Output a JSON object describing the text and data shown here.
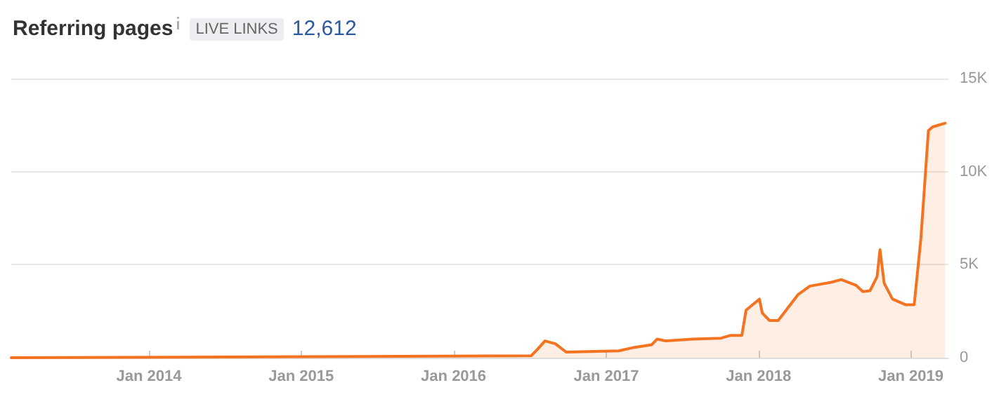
{
  "chart_data": {
    "type": "area",
    "title": "Referring pages",
    "subtitle": "LIVE LINKS",
    "annotations": [
      "12,612"
    ],
    "x": [
      "2013-02-05",
      "2016-07-05",
      "2016-07-20",
      "2016-08-07",
      "2016-09-01",
      "2016-09-27",
      "2017-01-31",
      "2017-03-08",
      "2017-04-20",
      "2017-05-03",
      "2017-05-24",
      "2017-07-27",
      "2017-10-03",
      "2017-10-26",
      "2017-11-22",
      "2017-12-02",
      "2018-01-03",
      "2018-01-10",
      "2018-01-27",
      "2018-02-17",
      "2018-04-06",
      "2018-05-04",
      "2018-06-24",
      "2018-07-18",
      "2018-08-22",
      "2018-09-08",
      "2018-09-25",
      "2018-10-12",
      "2018-10-19",
      "2018-10-29",
      "2018-11-18",
      "2018-12-19",
      "2019-01-09",
      "2019-01-25",
      "2019-02-12",
      "2019-02-22",
      "2019-03-24"
    ],
    "series": [
      {
        "color": "#f47321",
        "values": [
          0,
          100,
          450,
          900,
          750,
          300,
          370,
          550,
          700,
          1000,
          900,
          1000,
          1050,
          1200,
          1200,
          2550,
          3150,
          2400,
          2000,
          2000,
          3400,
          3850,
          4050,
          4200,
          3900,
          3550,
          3600,
          4350,
          5800,
          4000,
          3150,
          2850,
          2850,
          6400,
          12200,
          12400,
          12600
        ]
      }
    ],
    "xlim": [
      "2013-02-05",
      "2019-04-01"
    ],
    "xticks": [
      {
        "value": "2014-01",
        "label": "Jan 2014"
      },
      {
        "value": "2015-01",
        "label": "Jan 2015"
      },
      {
        "value": "2016-01",
        "label": "Jan 2016"
      },
      {
        "value": "2017-01",
        "label": "Jan 2017"
      },
      {
        "value": "2018-01",
        "label": "Jan 2018"
      },
      {
        "value": "2019-01",
        "label": "Jan 2019"
      }
    ],
    "ylim": [
      0,
      15000
    ],
    "yticks": [
      0,
      {
        "value": 5000,
        "label": "5K"
      },
      {
        "value": 10000,
        "label": "10K"
      },
      {
        "value": 15000,
        "label": "15K"
      }
    ],
    "grid": "y",
    "marker": "none",
    "line_style": "solid"
  }
}
